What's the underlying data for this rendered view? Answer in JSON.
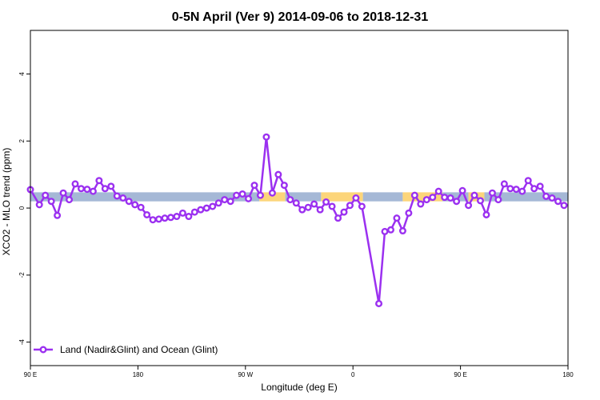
{
  "chart_data": {
    "type": "line",
    "title": "0-5N April (Ver 9)   2014-09-06 to 2018-12-31",
    "xlabel": "Longitude (deg E)",
    "ylabel": "XCO2 - MLO trend (ppm)",
    "xlim": [
      -90,
      180
    ],
    "ylim": [
      -4.7,
      5.3
    ],
    "x_ticks": [
      {
        "value": -90,
        "label": "90 E"
      },
      {
        "value": -36,
        "label": "180"
      },
      {
        "value": 18,
        "label": "90 W"
      },
      {
        "value": 72,
        "label": "0"
      },
      {
        "value": 126,
        "label": "90 E"
      },
      {
        "value": 180,
        "label": "180"
      }
    ],
    "y_ticks": [
      {
        "value": -4,
        "label": "-4"
      },
      {
        "value": -2,
        "label": "-2"
      },
      {
        "value": 0,
        "label": "0"
      },
      {
        "value": 2,
        "label": "2"
      },
      {
        "value": 4,
        "label": "4"
      }
    ],
    "grid": false,
    "band": {
      "y0": 0.2,
      "y1": 0.47,
      "segments": [
        {
          "x0": -90,
          "x1": 25,
          "color": "#a5b8d6"
        },
        {
          "x0": 25,
          "x1": 38,
          "color": "#fcd57a"
        },
        {
          "x0": 38,
          "x1": 56,
          "color": "#a5b8d6"
        },
        {
          "x0": 56,
          "x1": 77,
          "color": "#fcd57a"
        },
        {
          "x0": 77,
          "x1": 97,
          "color": "#a5b8d6"
        },
        {
          "x0": 97,
          "x1": 117,
          "color": "#fcd57a"
        },
        {
          "x0": 117,
          "x1": 130,
          "color": "#a5b8d6"
        },
        {
          "x0": 130,
          "x1": 138,
          "color": "#fcd57a"
        },
        {
          "x0": 138,
          "x1": 180,
          "color": "#a5b8d6"
        }
      ]
    },
    "legend_position": "bottom-left",
    "series": [
      {
        "name": "Land (Nadir&Glint) and Ocean (Glint)",
        "color": "#9b30f0",
        "points": [
          {
            "x": -90,
            "y": 0.55
          },
          {
            "x": -85.5,
            "y": 0.1
          },
          {
            "x": -82.5,
            "y": 0.38
          },
          {
            "x": -79.5,
            "y": 0.2
          },
          {
            "x": -76.5,
            "y": -0.22
          },
          {
            "x": -73.5,
            "y": 0.45
          },
          {
            "x": -70.5,
            "y": 0.25
          },
          {
            "x": -67.5,
            "y": 0.72
          },
          {
            "x": -64.5,
            "y": 0.58
          },
          {
            "x": -61.5,
            "y": 0.56
          },
          {
            "x": -58.5,
            "y": 0.5
          },
          {
            "x": -55.5,
            "y": 0.82
          },
          {
            "x": -52.5,
            "y": 0.58
          },
          {
            "x": -49.5,
            "y": 0.65
          },
          {
            "x": -46.5,
            "y": 0.36
          },
          {
            "x": -43.5,
            "y": 0.3
          },
          {
            "x": -40.5,
            "y": 0.2
          },
          {
            "x": -37.5,
            "y": 0.1
          },
          {
            "x": -34.5,
            "y": 0.02
          },
          {
            "x": -31.5,
            "y": -0.2
          },
          {
            "x": -28.5,
            "y": -0.35
          },
          {
            "x": -25.5,
            "y": -0.33
          },
          {
            "x": -22.5,
            "y": -0.3
          },
          {
            "x": -19.5,
            "y": -0.28
          },
          {
            "x": -16.5,
            "y": -0.25
          },
          {
            "x": -13.5,
            "y": -0.15
          },
          {
            "x": -10.5,
            "y": -0.25
          },
          {
            "x": -7.5,
            "y": -0.12
          },
          {
            "x": -4.5,
            "y": -0.05
          },
          {
            "x": -1.5,
            "y": 0.0
          },
          {
            "x": 1.5,
            "y": 0.05
          },
          {
            "x": 4.5,
            "y": 0.15
          },
          {
            "x": 7.5,
            "y": 0.25
          },
          {
            "x": 10.5,
            "y": 0.2
          },
          {
            "x": 13.5,
            "y": 0.38
          },
          {
            "x": 16.5,
            "y": 0.42
          },
          {
            "x": 19.5,
            "y": 0.28
          },
          {
            "x": 22.5,
            "y": 0.68
          },
          {
            "x": 25.5,
            "y": 0.38
          },
          {
            "x": 28.5,
            "y": 2.12
          },
          {
            "x": 31.5,
            "y": 0.45
          },
          {
            "x": 34.5,
            "y": 1.0
          },
          {
            "x": 37.5,
            "y": 0.68
          },
          {
            "x": 40.5,
            "y": 0.25
          },
          {
            "x": 43.5,
            "y": 0.15
          },
          {
            "x": 46.5,
            "y": -0.05
          },
          {
            "x": 49.5,
            "y": 0.02
          },
          {
            "x": 52.5,
            "y": 0.12
          },
          {
            "x": 55.5,
            "y": -0.05
          },
          {
            "x": 58.5,
            "y": 0.18
          },
          {
            "x": 61.5,
            "y": 0.05
          },
          {
            "x": 64.5,
            "y": -0.3
          },
          {
            "x": 67.5,
            "y": -0.12
          },
          {
            "x": 70.5,
            "y": 0.08
          },
          {
            "x": 73.5,
            "y": 0.3
          },
          {
            "x": 76.5,
            "y": 0.05
          },
          {
            "x": 85,
            "y": -2.85
          },
          {
            "x": 88,
            "y": -0.7
          },
          {
            "x": 91,
            "y": -0.65
          },
          {
            "x": 94,
            "y": -0.3
          },
          {
            "x": 97,
            "y": -0.68
          },
          {
            "x": 100,
            "y": -0.15
          },
          {
            "x": 103,
            "y": 0.38
          },
          {
            "x": 106,
            "y": 0.12
          },
          {
            "x": 109,
            "y": 0.25
          },
          {
            "x": 112,
            "y": 0.32
          },
          {
            "x": 115,
            "y": 0.5
          },
          {
            "x": 118,
            "y": 0.32
          },
          {
            "x": 121,
            "y": 0.3
          },
          {
            "x": 124,
            "y": 0.2
          },
          {
            "x": 127,
            "y": 0.52
          },
          {
            "x": 130,
            "y": 0.08
          },
          {
            "x": 133,
            "y": 0.38
          },
          {
            "x": 136,
            "y": 0.22
          },
          {
            "x": 139,
            "y": -0.2
          },
          {
            "x": 142,
            "y": 0.45
          },
          {
            "x": 145,
            "y": 0.25
          },
          {
            "x": 148,
            "y": 0.72
          },
          {
            "x": 151,
            "y": 0.58
          },
          {
            "x": 154,
            "y": 0.56
          },
          {
            "x": 157,
            "y": 0.5
          },
          {
            "x": 160,
            "y": 0.82
          },
          {
            "x": 163,
            "y": 0.58
          },
          {
            "x": 166,
            "y": 0.65
          },
          {
            "x": 169,
            "y": 0.35
          },
          {
            "x": 172,
            "y": 0.3
          },
          {
            "x": 175,
            "y": 0.2
          },
          {
            "x": 178,
            "y": 0.08
          }
        ]
      }
    ]
  }
}
